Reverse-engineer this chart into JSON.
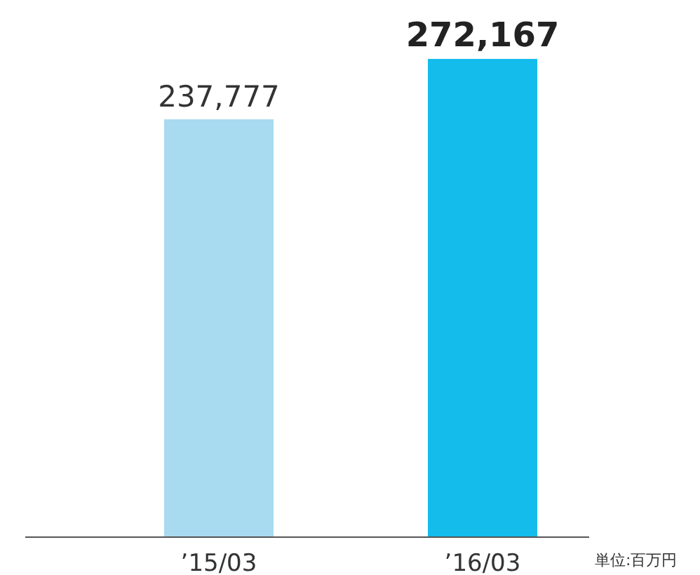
{
  "chart_data": {
    "type": "bar",
    "categories": [
      "’15/03",
      "’16/03"
    ],
    "values": [
      237777,
      272167
    ],
    "colors": [
      "#a8daf0",
      "#14bcec"
    ],
    "value_labels": [
      "237,777",
      "272,167"
    ],
    "annotations": [
      "単位:百万円"
    ]
  }
}
